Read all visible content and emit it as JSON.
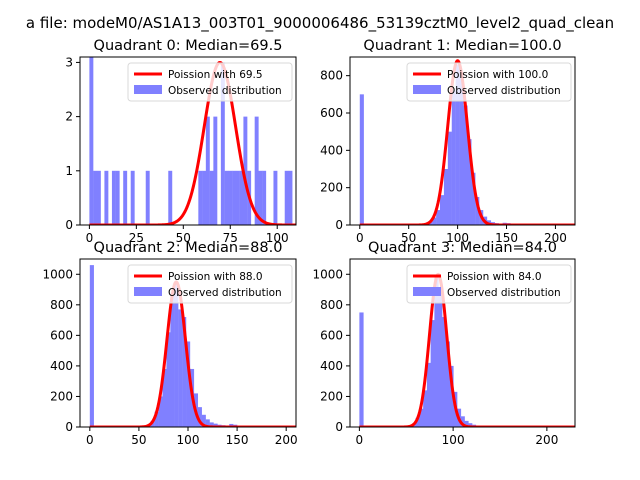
{
  "figure": {
    "suptitle": "a file: modeM0/AS1A13_003T01_9000006486_53139cztM0_level2_quad_clean"
  },
  "colors": {
    "poisson": "#ff0000",
    "histogram": "#8080ff",
    "axes": "#000000"
  },
  "chart_data": [
    {
      "type": "bar+line",
      "title": "Quadrant 0: Median=69.5",
      "xlim": [
        -5,
        110
      ],
      "ylim": [
        0,
        3.1
      ],
      "xticks": [
        0,
        25,
        50,
        75,
        100
      ],
      "yticks": [
        0,
        1,
        2,
        3
      ],
      "legend": {
        "placement": "upper-right",
        "entries": [
          "Poission with 69.5",
          "Observed distribution"
        ]
      },
      "poisson": {
        "mean": 69.5,
        "peak": 3.0
      },
      "bin_width": 2.1,
      "histogram": [
        [
          0,
          3.2
        ],
        [
          2,
          1
        ],
        [
          4,
          1
        ],
        [
          8,
          1
        ],
        [
          12,
          1
        ],
        [
          14,
          1
        ],
        [
          18,
          1
        ],
        [
          22,
          1
        ],
        [
          30,
          1
        ],
        [
          42,
          1
        ],
        [
          58,
          1
        ],
        [
          60,
          1
        ],
        [
          62,
          2
        ],
        [
          64,
          1
        ],
        [
          66,
          2
        ],
        [
          70,
          3
        ],
        [
          72,
          1
        ],
        [
          74,
          1
        ],
        [
          76,
          1
        ],
        [
          78,
          1
        ],
        [
          80,
          1
        ],
        [
          82,
          2
        ],
        [
          84,
          1
        ],
        [
          88,
          2
        ],
        [
          90,
          1
        ],
        [
          92,
          1
        ],
        [
          98,
          1
        ],
        [
          104,
          1
        ],
        [
          106,
          1
        ]
      ]
    },
    {
      "type": "bar+line",
      "title": "Quadrant 1: Median=100.0",
      "xlim": [
        -10,
        220
      ],
      "ylim": [
        0,
        900
      ],
      "xticks": [
        0,
        50,
        100,
        150,
        200
      ],
      "yticks": [
        0,
        200,
        400,
        600,
        800
      ],
      "legend": {
        "placement": "upper-right",
        "entries": [
          "Poission with 100.0",
          "Observed distribution"
        ]
      },
      "poisson": {
        "mean": 100.0,
        "peak": 880
      },
      "bin_width": 4.2,
      "histogram": [
        [
          0,
          700
        ],
        [
          62,
          5
        ],
        [
          66,
          10
        ],
        [
          70,
          20
        ],
        [
          74,
          40
        ],
        [
          78,
          80
        ],
        [
          82,
          160
        ],
        [
          86,
          300
        ],
        [
          90,
          500
        ],
        [
          94,
          720
        ],
        [
          98,
          860
        ],
        [
          102,
          800
        ],
        [
          106,
          640
        ],
        [
          110,
          460
        ],
        [
          114,
          280
        ],
        [
          118,
          150
        ],
        [
          122,
          80
        ],
        [
          126,
          45
        ],
        [
          130,
          25
        ],
        [
          134,
          15
        ],
        [
          138,
          10
        ],
        [
          142,
          8
        ],
        [
          146,
          12
        ],
        [
          150,
          10
        ],
        [
          154,
          6
        ],
        [
          158,
          5
        ],
        [
          162,
          4
        ],
        [
          166,
          3
        ],
        [
          170,
          3
        ],
        [
          180,
          2
        ],
        [
          190,
          2
        ],
        [
          200,
          1
        ]
      ]
    },
    {
      "type": "bar+line",
      "title": "Quadrant 2: Median=88.0",
      "xlim": [
        -10,
        210
      ],
      "ylim": [
        0,
        1100
      ],
      "xticks": [
        0,
        50,
        100,
        150,
        200
      ],
      "yticks": [
        0,
        200,
        400,
        600,
        800,
        1000
      ],
      "legend": {
        "placement": "upper-right",
        "entries": [
          "Poission with 88.0",
          "Observed distribution"
        ]
      },
      "poisson": {
        "mean": 88.0,
        "peak": 950
      },
      "bin_width": 4.2,
      "histogram": [
        [
          0,
          1060
        ],
        [
          54,
          5
        ],
        [
          58,
          15
        ],
        [
          62,
          40
        ],
        [
          66,
          100
        ],
        [
          70,
          200
        ],
        [
          74,
          380
        ],
        [
          78,
          620
        ],
        [
          82,
          880
        ],
        [
          86,
          940
        ],
        [
          90,
          770
        ],
        [
          94,
          720
        ],
        [
          98,
          560
        ],
        [
          102,
          380
        ],
        [
          106,
          220
        ],
        [
          110,
          130
        ],
        [
          114,
          80
        ],
        [
          118,
          50
        ],
        [
          122,
          30
        ],
        [
          126,
          22
        ],
        [
          130,
          15
        ],
        [
          134,
          12
        ],
        [
          138,
          10
        ],
        [
          142,
          20
        ],
        [
          146,
          15
        ],
        [
          150,
          8
        ],
        [
          154,
          6
        ],
        [
          160,
          4
        ],
        [
          170,
          3
        ],
        [
          180,
          2
        ]
      ]
    },
    {
      "type": "bar+line",
      "title": "Quadrant 3: Median=84.0",
      "xlim": [
        -10,
        230
      ],
      "ylim": [
        0,
        1100
      ],
      "xticks": [
        0,
        100,
        200
      ],
      "yticks": [
        0,
        200,
        400,
        600,
        800,
        1000
      ],
      "legend": {
        "placement": "upper-right",
        "entries": [
          "Poission with 84.0",
          "Observed distribution"
        ]
      },
      "poisson": {
        "mean": 84.0,
        "peak": 1000
      },
      "bin_width": 4.5,
      "histogram": [
        [
          0,
          750
        ],
        [
          52,
          5
        ],
        [
          56,
          20
        ],
        [
          60,
          60
        ],
        [
          64,
          120
        ],
        [
          68,
          240
        ],
        [
          72,
          420
        ],
        [
          76,
          700
        ],
        [
          80,
          980
        ],
        [
          84,
          880
        ],
        [
          88,
          720
        ],
        [
          92,
          560
        ],
        [
          96,
          400
        ],
        [
          100,
          230
        ],
        [
          104,
          120
        ],
        [
          108,
          70
        ],
        [
          112,
          40
        ],
        [
          116,
          25
        ],
        [
          120,
          15
        ],
        [
          124,
          10
        ],
        [
          130,
          8
        ],
        [
          140,
          6
        ],
        [
          150,
          5
        ],
        [
          160,
          4
        ],
        [
          170,
          3
        ],
        [
          180,
          2
        ],
        [
          200,
          1
        ]
      ]
    }
  ]
}
